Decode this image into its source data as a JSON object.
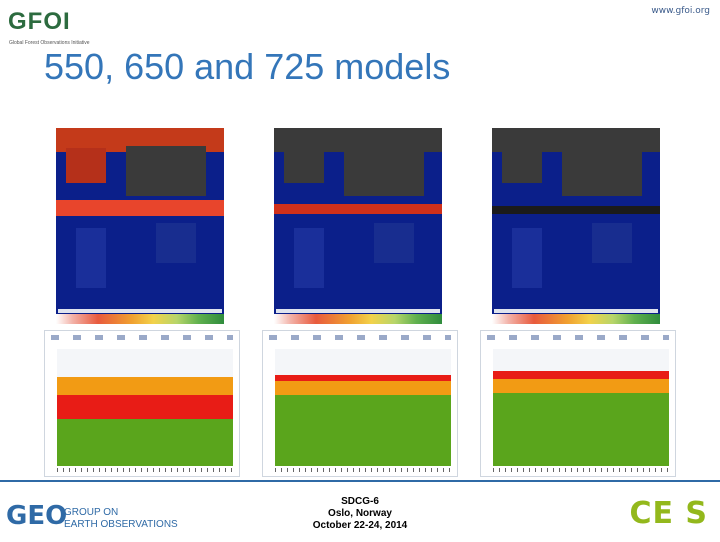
{
  "header": {
    "url": "www.gfoi.org",
    "logo_text": "GFOI",
    "logo_subtitle": "Global Forest Observations Initiative"
  },
  "slide": {
    "title": "550, 650 and 725 models"
  },
  "footer": {
    "left_logo_text": "GEO",
    "left_org_line1": "GROUP ON",
    "left_org_line2": "EARTH OBSERVATIONS",
    "center_line1": "SDCG-6",
    "center_line2": "Oslo, Norway",
    "center_line3": "October 22-24, 2014",
    "right_logo_text": "CE S"
  },
  "colors": {
    "title": "#3476b9",
    "map_water": "#0b1f8a",
    "band_550": "#e8452c",
    "band_650": "#d0301a",
    "band_725": "#1b1b1b",
    "chart_green": "#5aa51c",
    "chart_red": "#e81c16",
    "chart_orange": "#f29b14"
  }
}
